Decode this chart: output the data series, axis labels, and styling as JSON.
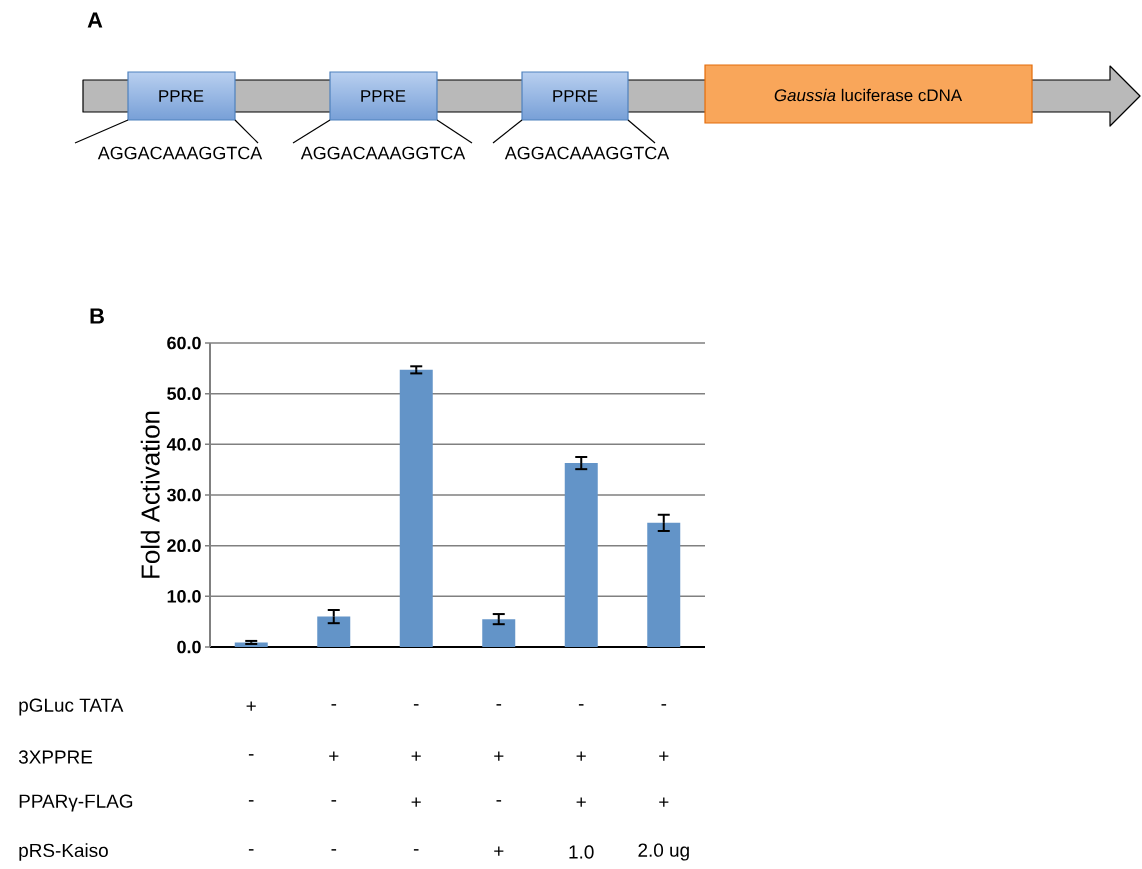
{
  "chart_data": [
    {
      "type": "other",
      "title": "A",
      "annotations": [
        "PPRE",
        "PPRE",
        "PPRE",
        "*Gaussia* luciferase cDNA",
        "AGGACAAAGGTCA",
        "AGGACAAAGGTCA",
        "AGGACAAAGGTCA"
      ]
    },
    {
      "type": "bar",
      "title": "B",
      "ylabel": "Fold Activation",
      "categories": [
        null,
        null,
        null,
        null,
        null,
        null
      ],
      "values": [
        0.9,
        6.0,
        54.7,
        5.5,
        36.3,
        24.5
      ],
      "errors": [
        0.3,
        1.3,
        0.7,
        1.0,
        1.2,
        1.6
      ],
      "color": "#6394c8",
      "ylim": [
        0,
        60
      ],
      "yticks": [
        {
          "value": 0,
          "label": "0.0"
        },
        {
          "value": 10,
          "label": "10.0"
        },
        {
          "value": 20,
          "label": "20.0"
        },
        {
          "value": 30,
          "label": "30.0"
        },
        {
          "value": 40,
          "label": "40.0"
        },
        {
          "value": 50,
          "label": "50.0"
        },
        {
          "value": 60,
          "label": "60.0"
        }
      ],
      "grid": "y",
      "annotations": [
        "pGLuc TATA",
        "+",
        "-",
        "-",
        "-",
        "-",
        "-",
        "3XPPRE",
        "-",
        "+",
        "+",
        "+",
        "+",
        "+",
        "PPARγ-FLAG",
        "-",
        "-",
        "+",
        "-",
        "+",
        "+",
        "pRS-Kaiso",
        "-",
        "-",
        "-",
        "+",
        "1.0",
        "2.0 ug"
      ]
    }
  ]
}
